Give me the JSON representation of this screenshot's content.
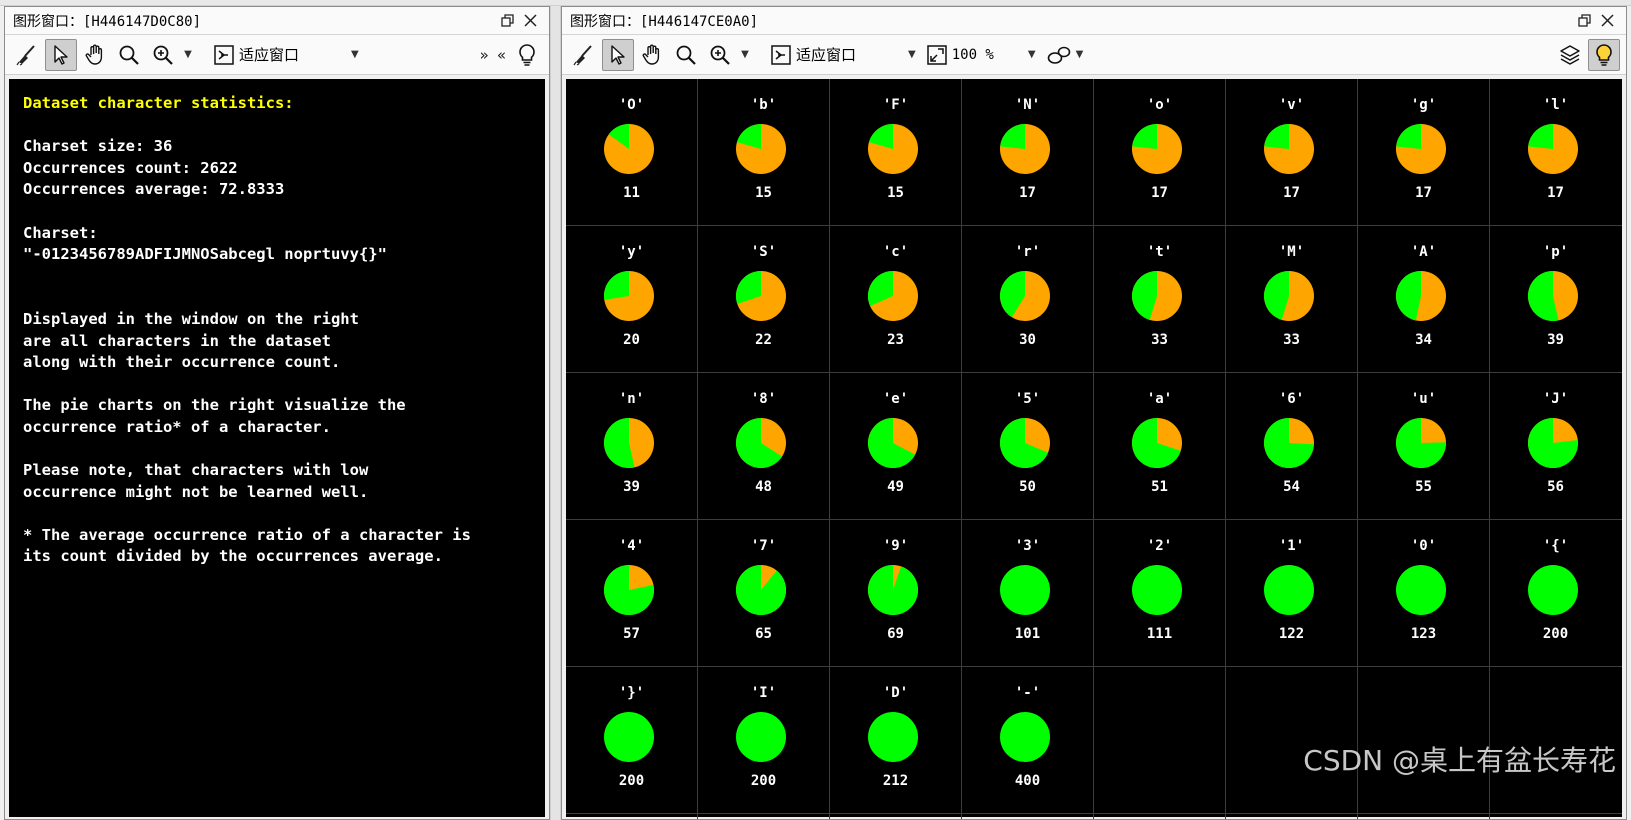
{
  "left_window": {
    "title": "图形窗口：[H446147D0C80]",
    "toolbar": {
      "zoom_mode_label": "适应窗口",
      "expand_label": "»",
      "collapse_label": "«"
    },
    "stats": {
      "heading": "Dataset character statistics:",
      "lines": [
        "",
        "Charset size: 36",
        "Occurrences count: 2622",
        "Occurrences average: 72.8333",
        "",
        "Charset:",
        "\"-0123456789ADFIJMNOSabcegl noprtuvy{}\"",
        "",
        "",
        "Displayed in the window on the right",
        "are all characters in the dataset",
        "along with their occurrence count.",
        "",
        "The pie charts on the right visualize the",
        "occurrence ratio* of a character.",
        "",
        "Please note, that characters with low",
        "occurrence might not be learned well.",
        "",
        "* The average occurrence ratio of a character is",
        "its count divided by the occurrences average."
      ]
    }
  },
  "right_window": {
    "title": "图形窗口：[H446147CE0A0]",
    "toolbar": {
      "zoom_mode_label": "适应窗口",
      "zoom_percent_label": "100 %"
    }
  },
  "colors": {
    "pie_ratio": "#00ff00",
    "pie_remainder": "#ffa500",
    "heading": "#ffff00",
    "text": "#ffffff",
    "background": "#000000"
  },
  "chart_data": {
    "type": "pie",
    "average": 72.8333,
    "items": [
      {
        "char": "'O'",
        "count": 11
      },
      {
        "char": "'b'",
        "count": 15
      },
      {
        "char": "'F'",
        "count": 15
      },
      {
        "char": "'N'",
        "count": 17
      },
      {
        "char": "'o'",
        "count": 17
      },
      {
        "char": "'v'",
        "count": 17
      },
      {
        "char": "'g'",
        "count": 17
      },
      {
        "char": "'l'",
        "count": 17
      },
      {
        "char": "'y'",
        "count": 20
      },
      {
        "char": "'S'",
        "count": 22
      },
      {
        "char": "'c'",
        "count": 23
      },
      {
        "char": "'r'",
        "count": 30
      },
      {
        "char": "'t'",
        "count": 33
      },
      {
        "char": "'M'",
        "count": 33
      },
      {
        "char": "'A'",
        "count": 34
      },
      {
        "char": "'p'",
        "count": 39
      },
      {
        "char": "'n'",
        "count": 39
      },
      {
        "char": "'8'",
        "count": 48
      },
      {
        "char": "'e'",
        "count": 49
      },
      {
        "char": "'5'",
        "count": 50
      },
      {
        "char": "'a'",
        "count": 51
      },
      {
        "char": "'6'",
        "count": 54
      },
      {
        "char": "'u'",
        "count": 55
      },
      {
        "char": "'J'",
        "count": 56
      },
      {
        "char": "'4'",
        "count": 57
      },
      {
        "char": "'7'",
        "count": 65
      },
      {
        "char": "'9'",
        "count": 69
      },
      {
        "char": "'3'",
        "count": 101
      },
      {
        "char": "'2'",
        "count": 111
      },
      {
        "char": "'1'",
        "count": 122
      },
      {
        "char": "'0'",
        "count": 123
      },
      {
        "char": "'{'",
        "count": 200
      },
      {
        "char": "'}'",
        "count": 200
      },
      {
        "char": "'I'",
        "count": 200
      },
      {
        "char": "'D'",
        "count": 212
      },
      {
        "char": "'-'",
        "count": 400
      }
    ]
  },
  "watermark": "CSDN @桌上有盆长寿花"
}
